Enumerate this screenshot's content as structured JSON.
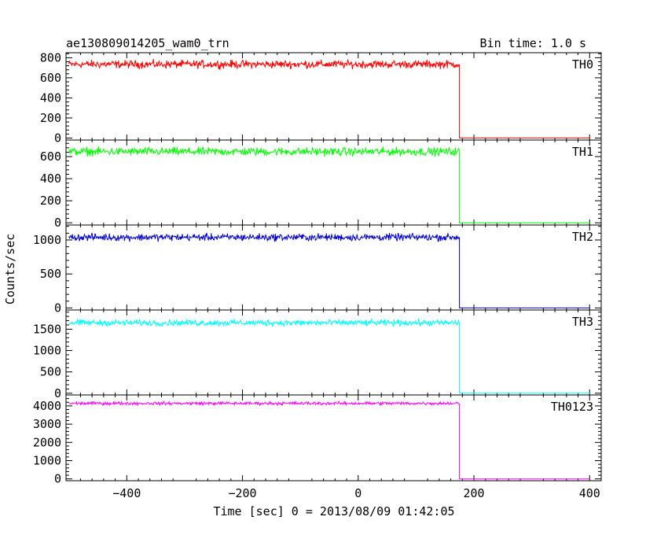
{
  "header": {
    "title": "ae130809014205_wam0_trn",
    "bin_time": "Bin time: 1.0 s"
  },
  "axes": {
    "xlabel": "Time [sec] 0 = 2013/08/09 01:42:05",
    "ylabel": "Counts/sec"
  },
  "chart_data": {
    "type": "line",
    "title": "ae130809014205_wam0_trn",
    "xlabel": "Time [sec] 0 = 2013/08/09 01:42:05",
    "ylabel": "Counts/sec",
    "xlim": [
      -505,
      420
    ],
    "x_ticks": [
      -400,
      -200,
      0,
      200,
      400
    ],
    "step_time": 175,
    "data_start": -500,
    "data_end": 400,
    "grid": false,
    "series": [
      {
        "name": "TH0",
        "color": "#ff0000",
        "level": 735,
        "noise": 30,
        "after": 0,
        "ylim": [
          -20,
          850
        ],
        "yticks": [
          0,
          200,
          400,
          600,
          800
        ]
      },
      {
        "name": "TH1",
        "color": "#00ff00",
        "level": 645,
        "noise": 28,
        "after": 0,
        "ylim": [
          -20,
          750
        ],
        "yticks": [
          0,
          200,
          400,
          600
        ]
      },
      {
        "name": "TH2",
        "color": "#0000cc",
        "level": 1040,
        "noise": 40,
        "after": 0,
        "ylim": [
          -30,
          1220
        ],
        "yticks": [
          0,
          500,
          1000
        ]
      },
      {
        "name": "TH3",
        "color": "#00ffff",
        "level": 1650,
        "noise": 55,
        "after": 0,
        "ylim": [
          -40,
          1950
        ],
        "yticks": [
          0,
          500,
          1000,
          1500
        ]
      },
      {
        "name": "TH0123",
        "color": "#ff00ff",
        "level": 4140,
        "noise": 65,
        "after": 0,
        "ylim": [
          -100,
          4600
        ],
        "yticks": [
          0,
          1000,
          2000,
          3000,
          4000
        ]
      }
    ]
  }
}
